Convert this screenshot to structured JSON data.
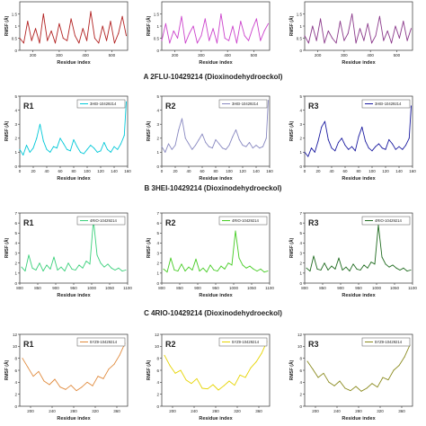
{
  "figure": {
    "captions": [
      "A  2FLU-10429214 (Dioxinodehydroeckol)",
      "B  3HEI-10429214 (Dioxinodehydroeckol)",
      "C  4RIO-10429214 (Dioxinodehydroeckol)"
    ]
  },
  "chart_data": [
    {
      "type": "line",
      "row": 0,
      "col": 0,
      "panel_label": "",
      "legend": "",
      "color": "#b22222",
      "xlabel": "Residue index",
      "ylabel": "RMSF (Å)",
      "xlim": [
        150,
        560
      ],
      "ylim": [
        0,
        2.0
      ],
      "xticks": [
        200,
        300,
        400,
        500
      ],
      "yticks": [
        0,
        0.5,
        1.0,
        1.5
      ],
      "x": [
        150,
        165,
        180,
        195,
        210,
        225,
        240,
        255,
        270,
        285,
        300,
        315,
        330,
        345,
        360,
        375,
        390,
        405,
        420,
        435,
        450,
        465,
        480,
        495,
        510,
        525,
        540,
        555
      ],
      "y": [
        0.5,
        0.3,
        1.2,
        0.4,
        0.9,
        0.3,
        1.5,
        0.4,
        0.8,
        0.3,
        1.1,
        0.5,
        0.4,
        1.3,
        0.6,
        0.3,
        0.9,
        0.4,
        1.6,
        0.5,
        0.3,
        1.0,
        0.4,
        1.2,
        0.3,
        0.7,
        1.4,
        0.6
      ]
    },
    {
      "type": "line",
      "row": 0,
      "col": 1,
      "panel_label": "",
      "legend": "",
      "color": "#cc44cc",
      "xlabel": "Residue index",
      "ylabel": "RMSF (Å)",
      "xlim": [
        150,
        560
      ],
      "ylim": [
        0,
        2.0
      ],
      "xticks": [
        200,
        300,
        400,
        500
      ],
      "yticks": [
        0,
        0.5,
        1.0,
        1.5
      ],
      "x": [
        150,
        165,
        180,
        195,
        210,
        225,
        240,
        255,
        270,
        285,
        300,
        315,
        330,
        345,
        360,
        375,
        390,
        405,
        420,
        435,
        450,
        465,
        480,
        495,
        510,
        525,
        540,
        555
      ],
      "y": [
        0.4,
        1.1,
        0.3,
        0.8,
        0.5,
        1.4,
        0.3,
        0.7,
        1.0,
        0.3,
        0.6,
        1.3,
        0.4,
        0.9,
        0.3,
        1.5,
        0.5,
        0.4,
        1.0,
        0.3,
        1.2,
        0.6,
        0.4,
        0.9,
        1.3,
        0.4,
        0.8,
        1.1
      ]
    },
    {
      "type": "line",
      "row": 0,
      "col": 2,
      "panel_label": "",
      "legend": "",
      "color": "#8b3a8b",
      "xlabel": "Residue index",
      "ylabel": "RMSF (Å)",
      "xlim": [
        150,
        560
      ],
      "ylim": [
        0,
        2.0
      ],
      "xticks": [
        200,
        300,
        400,
        500
      ],
      "yticks": [
        0,
        0.5,
        1.0,
        1.5
      ],
      "x": [
        150,
        165,
        180,
        195,
        210,
        225,
        240,
        255,
        270,
        285,
        300,
        315,
        330,
        345,
        360,
        375,
        390,
        405,
        420,
        435,
        450,
        465,
        480,
        495,
        510,
        525,
        540,
        555
      ],
      "y": [
        0.6,
        0.3,
        1.0,
        0.4,
        1.3,
        0.3,
        0.8,
        0.5,
        0.3,
        1.2,
        0.4,
        0.7,
        1.5,
        0.3,
        0.9,
        0.4,
        1.1,
        0.3,
        0.6,
        1.4,
        0.4,
        0.8,
        0.3,
        1.0,
        0.5,
        1.2,
        0.4,
        0.9
      ]
    },
    {
      "type": "line",
      "row": 1,
      "col": 0,
      "panel_label": "R1",
      "legend": "3HEI-10429214",
      "color": "#00c8d8",
      "xlabel": "Residue index",
      "ylabel": "RMSF (Å)",
      "xlim": [
        0,
        160
      ],
      "ylim": [
        0,
        5
      ],
      "xticks": [
        0,
        20,
        40,
        60,
        80,
        100,
        120,
        140,
        160
      ],
      "yticks": [
        0,
        1,
        2,
        3,
        4,
        5
      ],
      "x": [
        0,
        5,
        10,
        15,
        20,
        25,
        30,
        35,
        40,
        45,
        50,
        55,
        60,
        65,
        70,
        75,
        80,
        85,
        90,
        95,
        100,
        105,
        110,
        115,
        120,
        125,
        130,
        135,
        140,
        145,
        150,
        155,
        158
      ],
      "y": [
        1.2,
        0.8,
        1.5,
        1.0,
        1.3,
        2.0,
        3.0,
        1.8,
        1.2,
        1.0,
        1.4,
        1.3,
        2.0,
        1.6,
        1.2,
        1.1,
        1.9,
        1.4,
        1.0,
        0.9,
        1.2,
        1.5,
        1.3,
        1.0,
        1.1,
        1.7,
        1.2,
        1.0,
        1.4,
        1.2,
        1.6,
        2.2,
        4.6
      ]
    },
    {
      "type": "line",
      "row": 1,
      "col": 1,
      "panel_label": "R2",
      "legend": "3HEI-10429214",
      "color": "#8888c0",
      "xlabel": "Residue index",
      "ylabel": "RMSF (Å)",
      "xlim": [
        0,
        160
      ],
      "ylim": [
        0,
        5
      ],
      "xticks": [
        0,
        20,
        40,
        60,
        80,
        100,
        120,
        140,
        160
      ],
      "yticks": [
        0,
        1,
        2,
        3,
        4,
        5
      ],
      "x": [
        0,
        5,
        10,
        15,
        20,
        25,
        30,
        35,
        40,
        45,
        50,
        55,
        60,
        65,
        70,
        75,
        80,
        85,
        90,
        95,
        100,
        105,
        110,
        115,
        120,
        125,
        130,
        135,
        140,
        145,
        150,
        155,
        158
      ],
      "y": [
        1.4,
        1.0,
        1.6,
        1.2,
        1.5,
        2.6,
        3.4,
        2.0,
        1.6,
        1.2,
        1.5,
        1.9,
        2.3,
        1.7,
        1.4,
        1.3,
        1.9,
        1.6,
        1.3,
        1.2,
        1.5,
        2.1,
        2.6,
        1.9,
        1.5,
        1.4,
        1.7,
        1.3,
        1.5,
        1.3,
        1.4,
        2.0,
        4.7
      ]
    },
    {
      "type": "line",
      "row": 1,
      "col": 2,
      "panel_label": "R3",
      "legend": "3HEI-10429214",
      "color": "#1a1aa0",
      "xlabel": "Residue index",
      "ylabel": "RMSF (Å)",
      "xlim": [
        0,
        160
      ],
      "ylim": [
        0,
        5
      ],
      "xticks": [
        0,
        20,
        40,
        60,
        80,
        100,
        120,
        140,
        160
      ],
      "yticks": [
        0,
        1,
        2,
        3,
        4,
        5
      ],
      "x": [
        0,
        5,
        10,
        15,
        20,
        25,
        30,
        35,
        40,
        45,
        50,
        55,
        60,
        65,
        70,
        75,
        80,
        85,
        90,
        95,
        100,
        105,
        110,
        115,
        120,
        125,
        130,
        135,
        140,
        145,
        150,
        155,
        158
      ],
      "y": [
        1.0,
        0.7,
        1.3,
        1.0,
        1.8,
        2.8,
        3.2,
        1.9,
        1.3,
        1.1,
        1.7,
        2.0,
        1.5,
        1.2,
        1.4,
        1.1,
        2.1,
        2.8,
        1.8,
        1.3,
        1.1,
        1.4,
        1.6,
        1.3,
        1.2,
        1.9,
        1.6,
        1.2,
        1.4,
        1.2,
        1.5,
        2.0,
        4.3
      ]
    },
    {
      "type": "line",
      "row": 2,
      "col": 0,
      "panel_label": "R1",
      "legend": "4RIO-10429214",
      "color": "#3ad07a",
      "xlabel": "Residue index",
      "ylabel": "RMSF (Å)",
      "xlim": [
        800,
        1100
      ],
      "ylim": [
        0,
        7
      ],
      "xticks": [
        800,
        850,
        900,
        950,
        1000,
        1050,
        1100
      ],
      "yticks": [
        0,
        1,
        2,
        3,
        4,
        5,
        6,
        7
      ],
      "x": [
        805,
        815,
        825,
        835,
        845,
        855,
        865,
        875,
        885,
        895,
        905,
        915,
        925,
        935,
        945,
        955,
        965,
        975,
        985,
        995,
        1005,
        1015,
        1025,
        1035,
        1045,
        1055,
        1065,
        1075,
        1085,
        1095
      ],
      "y": [
        1.6,
        1.2,
        2.8,
        1.5,
        1.3,
        2.0,
        1.2,
        1.8,
        1.4,
        2.6,
        1.3,
        1.6,
        1.2,
        2.0,
        1.4,
        1.3,
        1.8,
        1.5,
        2.2,
        1.9,
        6.3,
        2.8,
        2.0,
        1.6,
        1.9,
        1.5,
        1.3,
        1.5,
        1.2,
        1.3
      ]
    },
    {
      "type": "line",
      "row": 2,
      "col": 1,
      "panel_label": "R2",
      "legend": "4RIO-10429214",
      "color": "#44cc22",
      "xlabel": "Residue index",
      "ylabel": "RMSF (Å)",
      "xlim": [
        800,
        1100
      ],
      "ylim": [
        0,
        7
      ],
      "xticks": [
        800,
        850,
        900,
        950,
        1000,
        1050,
        1100
      ],
      "yticks": [
        0,
        1,
        2,
        3,
        4,
        5,
        6,
        7
      ],
      "x": [
        805,
        815,
        825,
        835,
        845,
        855,
        865,
        875,
        885,
        895,
        905,
        915,
        925,
        935,
        945,
        955,
        965,
        975,
        985,
        995,
        1005,
        1015,
        1025,
        1035,
        1045,
        1055,
        1065,
        1075,
        1085,
        1095
      ],
      "y": [
        1.4,
        1.1,
        2.5,
        1.3,
        1.2,
        1.9,
        1.2,
        1.6,
        1.3,
        2.4,
        1.2,
        1.5,
        1.1,
        1.8,
        1.3,
        1.2,
        1.7,
        1.4,
        2.0,
        1.8,
        5.2,
        2.5,
        1.8,
        1.5,
        1.7,
        1.4,
        1.2,
        1.4,
        1.1,
        1.2
      ]
    },
    {
      "type": "line",
      "row": 2,
      "col": 2,
      "panel_label": "R3",
      "legend": "4RIO-10429214",
      "color": "#1f6b1f",
      "xlabel": "Residue index",
      "ylabel": "RMSF (Å)",
      "xlim": [
        800,
        1100
      ],
      "ylim": [
        0,
        7
      ],
      "xticks": [
        800,
        850,
        900,
        950,
        1000,
        1050,
        1100
      ],
      "yticks": [
        0,
        1,
        2,
        3,
        4,
        5,
        6,
        7
      ],
      "x": [
        805,
        815,
        825,
        835,
        845,
        855,
        865,
        875,
        885,
        895,
        905,
        915,
        925,
        935,
        945,
        955,
        965,
        975,
        985,
        995,
        1005,
        1015,
        1025,
        1035,
        1045,
        1055,
        1065,
        1075,
        1085,
        1095
      ],
      "y": [
        1.5,
        1.2,
        2.7,
        1.4,
        1.3,
        2.0,
        1.3,
        1.7,
        1.4,
        2.5,
        1.3,
        1.6,
        1.2,
        1.9,
        1.4,
        1.3,
        1.8,
        1.5,
        2.1,
        1.9,
        5.8,
        2.6,
        1.9,
        1.6,
        1.8,
        1.5,
        1.3,
        1.5,
        1.2,
        1.3
      ]
    },
    {
      "type": "line",
      "row": 3,
      "col": 0,
      "panel_label": "R1",
      "legend": "5YZ9-10429214",
      "color": "#e08a3c",
      "xlabel": "Residue index",
      "ylabel": "RMSF (Å)",
      "xlim": [
        180,
        380
      ],
      "ylim": [
        0,
        12
      ],
      "xticks": [
        200,
        240,
        280,
        320,
        360
      ],
      "yticks": [
        0,
        2,
        4,
        6,
        8,
        10,
        12
      ],
      "x": [
        185,
        195,
        205,
        215,
        225,
        235,
        245,
        255,
        265,
        275,
        285,
        295,
        305,
        315,
        325,
        335,
        345,
        355,
        365,
        375
      ],
      "y": [
        8.0,
        6.5,
        5.0,
        5.8,
        4.2,
        3.6,
        4.5,
        3.2,
        2.8,
        3.5,
        2.6,
        3.2,
        4.0,
        3.4,
        5.0,
        4.6,
        6.2,
        7.0,
        8.5,
        10.5
      ]
    },
    {
      "type": "line",
      "row": 3,
      "col": 1,
      "panel_label": "R2",
      "legend": "5YZ9-10429214",
      "color": "#e6d400",
      "xlabel": "Residue index",
      "ylabel": "RMSF (Å)",
      "xlim": [
        180,
        380
      ],
      "ylim": [
        0,
        12
      ],
      "xticks": [
        200,
        240,
        280,
        320,
        360
      ],
      "yticks": [
        0,
        2,
        4,
        6,
        8,
        10,
        12
      ],
      "x": [
        185,
        195,
        205,
        215,
        225,
        235,
        245,
        255,
        265,
        275,
        285,
        295,
        305,
        315,
        325,
        335,
        345,
        355,
        365,
        375
      ],
      "y": [
        8.5,
        6.8,
        5.5,
        6.0,
        4.4,
        3.8,
        4.6,
        3.0,
        2.9,
        3.6,
        2.7,
        3.4,
        4.2,
        3.5,
        5.2,
        4.8,
        6.4,
        7.4,
        8.8,
        10.8
      ]
    },
    {
      "type": "line",
      "row": 3,
      "col": 2,
      "panel_label": "R3",
      "legend": "5YZ9-10429214",
      "color": "#8a8a1e",
      "xlabel": "Residue index",
      "ylabel": "RMSF (Å)",
      "xlim": [
        180,
        380
      ],
      "ylim": [
        0,
        12
      ],
      "xticks": [
        200,
        240,
        280,
        320,
        360
      ],
      "yticks": [
        0,
        2,
        4,
        6,
        8,
        10,
        12
      ],
      "x": [
        185,
        195,
        205,
        215,
        225,
        235,
        245,
        255,
        265,
        275,
        285,
        295,
        305,
        315,
        325,
        335,
        345,
        355,
        365,
        375
      ],
      "y": [
        7.5,
        6.2,
        4.8,
        5.5,
        4.0,
        3.4,
        4.2,
        3.0,
        2.6,
        3.3,
        2.5,
        3.0,
        3.8,
        3.2,
        4.8,
        4.4,
        6.0,
        6.8,
        8.2,
        10.2
      ]
    }
  ]
}
